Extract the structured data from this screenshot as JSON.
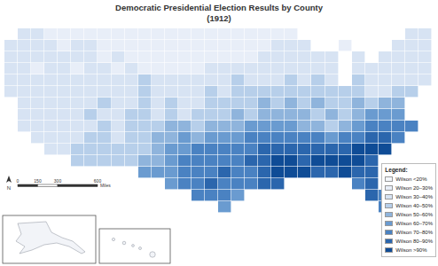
{
  "chart_data": {
    "type": "heatmap",
    "title": "Democratic Presidential Election Results by County",
    "subtitle": "(1912)",
    "tick_labels": false,
    "grid": false,
    "legend": "bottom right",
    "legend_title": "Legend:",
    "zlim": [
      0,
      100
    ],
    "legend_items": [
      {
        "label": "Wilson <20%",
        "from": 0,
        "to": 20,
        "color": "#f4f7fc"
      },
      {
        "label": "Wilson 20–30%",
        "from": 20,
        "to": 30,
        "color": "#e8eef8"
      },
      {
        "label": "Wilson 30–40%",
        "from": 30,
        "to": 40,
        "color": "#d7e3f3"
      },
      {
        "label": "Wilson 40–50%",
        "from": 40,
        "to": 50,
        "color": "#b7cfea"
      },
      {
        "label": "Wilson 50–60%",
        "from": 50,
        "to": 60,
        "color": "#8fb4dc"
      },
      {
        "label": "Wilson 60–70%",
        "from": 60,
        "to": 70,
        "color": "#6a9bd0"
      },
      {
        "label": "Wilson 70–80%",
        "from": 70,
        "to": 80,
        "color": "#4a82c2"
      },
      {
        "label": "Wilson 80–90%",
        "from": 80,
        "to": 90,
        "color": "#2b66ad"
      },
      {
        "label": "Wilson >90%",
        "from": 90,
        "to": 100,
        "color": "#0f4c96"
      }
    ],
    "scale_bar": {
      "ticks": [
        0,
        150,
        300,
        600
      ],
      "unit": "Miles"
    },
    "north": "N",
    "cells": [
      [
        null,
        35,
        35,
        25,
        25,
        25,
        25,
        25,
        25,
        25,
        25,
        25,
        25,
        25,
        25,
        25,
        25,
        25,
        25,
        25,
        25,
        25,
        null,
        null,
        null,
        null,
        null,
        null,
        null,
        null,
        35,
        35
      ],
      [
        35,
        35,
        35,
        35,
        25,
        35,
        35,
        25,
        25,
        25,
        25,
        25,
        25,
        25,
        25,
        25,
        25,
        25,
        25,
        25,
        35,
        35,
        35,
        null,
        null,
        25,
        null,
        null,
        null,
        35,
        35,
        35
      ],
      [
        35,
        35,
        35,
        35,
        35,
        35,
        35,
        25,
        35,
        25,
        25,
        25,
        25,
        25,
        25,
        25,
        25,
        25,
        25,
        35,
        35,
        35,
        35,
        35,
        35,
        null,
        35,
        null,
        35,
        35,
        35,
        35
      ],
      [
        35,
        35,
        25,
        35,
        35,
        25,
        35,
        35,
        25,
        35,
        25,
        25,
        25,
        25,
        25,
        35,
        35,
        35,
        35,
        35,
        35,
        35,
        35,
        35,
        35,
        null,
        35,
        35,
        35,
        35,
        35,
        35
      ],
      [
        35,
        35,
        35,
        35,
        35,
        35,
        35,
        35,
        35,
        35,
        45,
        35,
        35,
        35,
        35,
        35,
        35,
        45,
        35,
        35,
        35,
        45,
        35,
        45,
        35,
        null,
        45,
        35,
        35,
        35,
        35,
        35
      ],
      [
        35,
        35,
        35,
        35,
        35,
        35,
        35,
        35,
        35,
        35,
        45,
        35,
        35,
        35,
        35,
        45,
        35,
        45,
        45,
        45,
        45,
        45,
        45,
        45,
        45,
        45,
        45,
        35,
        35,
        45,
        45,
        null
      ],
      [
        null,
        35,
        35,
        35,
        35,
        35,
        35,
        45,
        35,
        35,
        45,
        35,
        45,
        35,
        35,
        45,
        45,
        45,
        45,
        55,
        45,
        55,
        45,
        55,
        45,
        45,
        55,
        45,
        55,
        55,
        null,
        null
      ],
      [
        null,
        35,
        35,
        35,
        35,
        35,
        45,
        35,
        35,
        45,
        45,
        35,
        45,
        35,
        45,
        45,
        45,
        55,
        45,
        55,
        55,
        55,
        55,
        45,
        55,
        45,
        55,
        65,
        65,
        65,
        null,
        null
      ],
      [
        null,
        35,
        35,
        35,
        35,
        35,
        35,
        45,
        35,
        45,
        45,
        45,
        55,
        55,
        45,
        55,
        55,
        55,
        65,
        65,
        65,
        65,
        55,
        55,
        45,
        55,
        65,
        75,
        75,
        75,
        75,
        null
      ],
      [
        null,
        null,
        35,
        35,
        35,
        35,
        45,
        45,
        35,
        45,
        45,
        55,
        55,
        65,
        55,
        65,
        65,
        65,
        75,
        75,
        75,
        75,
        75,
        75,
        65,
        75,
        75,
        85,
        85,
        75,
        null,
        null
      ],
      [
        null,
        null,
        null,
        35,
        35,
        45,
        45,
        45,
        45,
        45,
        45,
        55,
        65,
        65,
        75,
        75,
        75,
        75,
        75,
        85,
        85,
        85,
        85,
        85,
        85,
        85,
        95,
        95,
        95,
        null,
        null,
        null
      ],
      [
        null,
        null,
        null,
        null,
        null,
        45,
        45,
        45,
        45,
        45,
        55,
        55,
        65,
        75,
        75,
        75,
        75,
        75,
        85,
        85,
        95,
        95,
        85,
        95,
        95,
        95,
        95,
        85,
        null,
        null,
        null,
        null
      ],
      [
        null,
        null,
        null,
        null,
        null,
        null,
        null,
        null,
        null,
        null,
        65,
        65,
        65,
        75,
        75,
        75,
        85,
        75,
        75,
        85,
        95,
        95,
        95,
        85,
        85,
        95,
        85,
        85,
        null,
        null,
        null,
        null
      ],
      [
        null,
        null,
        null,
        null,
        null,
        null,
        null,
        null,
        null,
        null,
        null,
        null,
        65,
        75,
        75,
        85,
        75,
        75,
        75,
        85,
        85,
        null,
        null,
        null,
        null,
        null,
        75,
        85,
        null,
        null,
        null,
        null
      ],
      [
        null,
        null,
        null,
        null,
        null,
        null,
        null,
        null,
        null,
        null,
        null,
        null,
        null,
        null,
        75,
        75,
        75,
        65,
        null,
        null,
        null,
        null,
        null,
        null,
        null,
        null,
        null,
        85,
        75,
        null,
        null,
        null
      ],
      [
        null,
        null,
        null,
        null,
        null,
        null,
        null,
        null,
        null,
        null,
        null,
        null,
        null,
        null,
        null,
        null,
        65,
        null,
        null,
        null,
        null,
        null,
        null,
        null,
        null,
        null,
        null,
        null,
        75,
        null,
        null,
        null
      ]
    ]
  }
}
